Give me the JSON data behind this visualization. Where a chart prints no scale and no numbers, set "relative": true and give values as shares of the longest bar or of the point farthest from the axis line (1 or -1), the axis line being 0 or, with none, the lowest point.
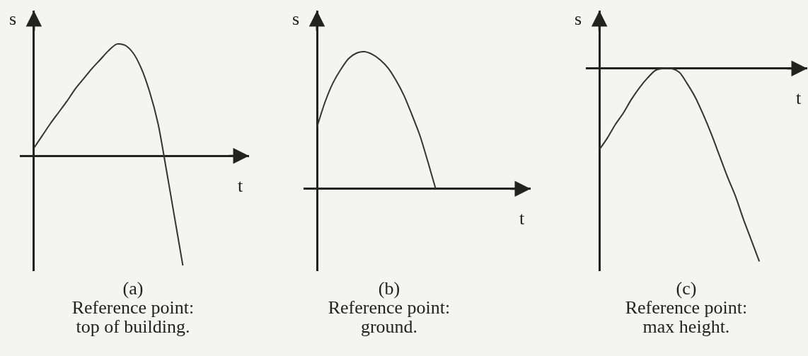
{
  "chart_data": [
    {
      "type": "line",
      "xlabel": "t",
      "ylabel": "s",
      "annotations": [
        "(a)",
        "Reference point:\ntop of building."
      ],
      "relative": true,
      "color": "#333333",
      "categories": [
        null,
        null,
        null,
        null,
        null,
        null,
        null,
        null,
        null,
        null,
        null,
        null,
        null,
        null,
        null,
        null,
        null,
        null,
        null,
        null,
        null,
        null,
        null,
        null,
        null,
        null,
        null
      ],
      "values": [
        0.07,
        0.18,
        0.29,
        0.39,
        0.49,
        0.6,
        0.69,
        0.78,
        0.86,
        0.94,
        1,
        0.99,
        0.92,
        0.78,
        0.57,
        0.29,
        -0.12,
        -0.55,
        -0.98,
        null,
        null,
        null,
        null,
        null,
        null,
        null,
        null
      ]
    },
    {
      "type": "line",
      "xlabel": "t",
      "ylabel": "s",
      "annotations": [
        "(b)",
        "Reference point:\nground."
      ],
      "relative": true,
      "color": "#333333",
      "categories": [
        null,
        null,
        null,
        null,
        null,
        null,
        null,
        null,
        null,
        null,
        null,
        null,
        null,
        null,
        null,
        null,
        null,
        null,
        null,
        null,
        null,
        null,
        null,
        null,
        null,
        null,
        null,
        null
      ],
      "values": [
        0.45,
        0.63,
        0.77,
        0.87,
        0.95,
        0.99,
        1,
        0.98,
        0.94,
        0.88,
        0.79,
        0.68,
        0.54,
        0.39,
        0.2,
        0,
        null,
        null,
        null,
        null,
        null,
        null,
        null,
        null,
        null,
        null,
        null,
        null
      ]
    },
    {
      "type": "line",
      "xlabel": "t",
      "ylabel": "s",
      "annotations": [
        "(c)",
        "Reference point:\nmax height."
      ],
      "relative": true,
      "color": "#333333",
      "categories": [
        null,
        null,
        null,
        null,
        null,
        null,
        null,
        null,
        null,
        null,
        null,
        null,
        null,
        null,
        null,
        null,
        null,
        null,
        null,
        null,
        null,
        null,
        null,
        null,
        null,
        null,
        null
      ],
      "values": [
        -0.42,
        -0.36,
        -0.29,
        -0.23,
        -0.16,
        -0.1,
        -0.05,
        -0.01,
        0,
        0,
        -0.02,
        -0.08,
        -0.15,
        -0.24,
        -0.34,
        -0.45,
        -0.56,
        -0.66,
        -0.78,
        -0.89,
        -1,
        null,
        null,
        null,
        null,
        null,
        null
      ]
    }
  ]
}
